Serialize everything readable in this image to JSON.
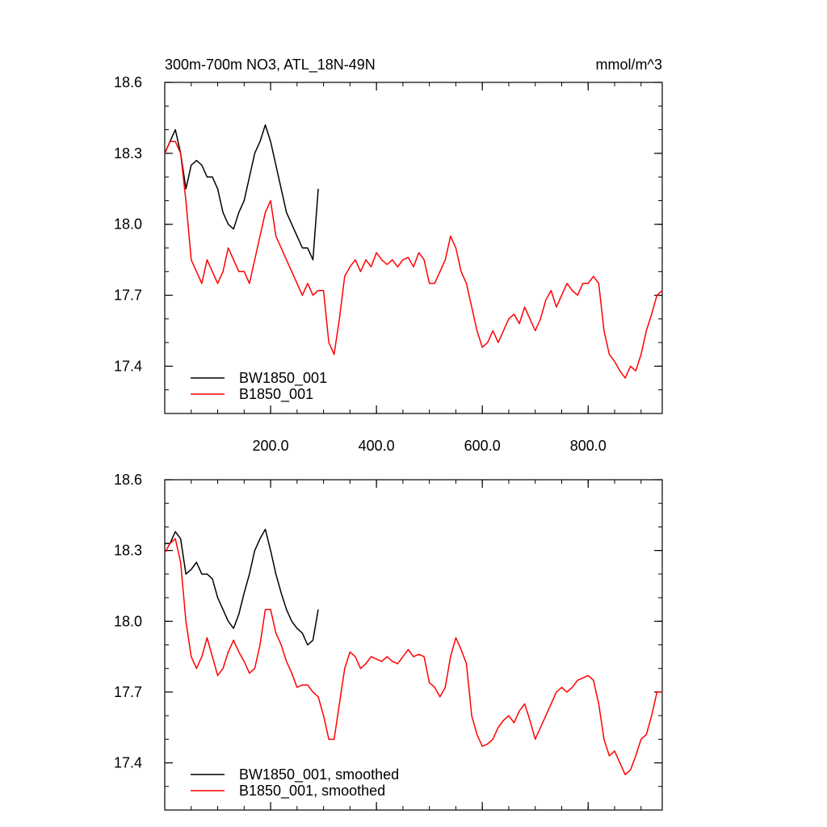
{
  "chart_data": [
    {
      "type": "line",
      "title": "300m-700m NO3, ATL_18N-49N",
      "units": "mmol/m^3",
      "xlim": [
        0,
        940
      ],
      "ylim": [
        17.2,
        18.6
      ],
      "xticks": [
        {
          "value": 200,
          "label": "200.0"
        },
        {
          "value": 400,
          "label": "400.0"
        },
        {
          "value": 600,
          "label": "600.0"
        },
        {
          "value": 800,
          "label": "800.0"
        }
      ],
      "show_xtick_labels": true,
      "yticks": [
        17.4,
        17.7,
        {
          "value": 18,
          "label": "18.0"
        },
        18.3,
        18.6
      ],
      "series": [
        {
          "name": "BW1850_001",
          "color": "#000000",
          "x": [
            0,
            10,
            20,
            30,
            40,
            50,
            60,
            70,
            80,
            90,
            100,
            110,
            120,
            130,
            140,
            150,
            160,
            170,
            180,
            190,
            200,
            210,
            220,
            230,
            240,
            250,
            260,
            270,
            280,
            290
          ],
          "values": [
            18.3,
            18.35,
            18.4,
            18.3,
            18.15,
            18.25,
            18.27,
            18.25,
            18.2,
            18.2,
            18.15,
            18.05,
            18.0,
            17.98,
            18.05,
            18.1,
            18.2,
            18.3,
            18.35,
            18.42,
            18.35,
            18.25,
            18.15,
            18.05,
            18.0,
            17.95,
            17.9,
            17.9,
            17.85,
            18.15
          ]
        },
        {
          "name": "B1850_001",
          "color": "#ff0000",
          "x": [
            0,
            10,
            20,
            30,
            40,
            50,
            60,
            70,
            80,
            90,
            100,
            110,
            120,
            130,
            140,
            150,
            160,
            170,
            180,
            190,
            200,
            210,
            220,
            230,
            240,
            250,
            260,
            270,
            280,
            290,
            300,
            310,
            320,
            330,
            340,
            350,
            360,
            370,
            380,
            390,
            400,
            410,
            420,
            430,
            440,
            450,
            460,
            470,
            480,
            490,
            500,
            510,
            520,
            530,
            540,
            550,
            560,
            570,
            580,
            590,
            600,
            610,
            620,
            630,
            640,
            650,
            660,
            670,
            680,
            690,
            700,
            710,
            720,
            730,
            740,
            750,
            760,
            770,
            780,
            790,
            800,
            810,
            820,
            830,
            840,
            850,
            860,
            870,
            880,
            890,
            900,
            910,
            920,
            930,
            940
          ],
          "values": [
            18.3,
            18.35,
            18.35,
            18.3,
            18.1,
            17.85,
            17.8,
            17.75,
            17.85,
            17.8,
            17.75,
            17.8,
            17.9,
            17.85,
            17.8,
            17.8,
            17.75,
            17.85,
            17.95,
            18.05,
            18.1,
            17.95,
            17.9,
            17.85,
            17.8,
            17.75,
            17.7,
            17.75,
            17.7,
            17.72,
            17.72,
            17.5,
            17.45,
            17.6,
            17.78,
            17.82,
            17.85,
            17.8,
            17.85,
            17.82,
            17.88,
            17.85,
            17.83,
            17.85,
            17.82,
            17.85,
            17.86,
            17.82,
            17.88,
            17.85,
            17.75,
            17.75,
            17.8,
            17.85,
            17.95,
            17.9,
            17.8,
            17.75,
            17.65,
            17.55,
            17.48,
            17.5,
            17.55,
            17.5,
            17.55,
            17.6,
            17.62,
            17.58,
            17.65,
            17.6,
            17.55,
            17.6,
            17.68,
            17.72,
            17.65,
            17.7,
            17.75,
            17.72,
            17.7,
            17.75,
            17.75,
            17.78,
            17.75,
            17.55,
            17.45,
            17.42,
            17.38,
            17.35,
            17.4,
            17.38,
            17.45,
            17.55,
            17.62,
            17.7,
            17.72
          ]
        }
      ]
    },
    {
      "type": "line",
      "xlim": [
        0,
        940
      ],
      "ylim": [
        17.2,
        18.6
      ],
      "xticks": [
        200,
        400,
        600,
        800
      ],
      "show_xtick_labels": false,
      "yticks": [
        17.4,
        17.7,
        {
          "value": 18,
          "label": "18.0"
        },
        18.3,
        18.6
      ],
      "series": [
        {
          "name": "BW1850_001, smoothed",
          "color": "#000000",
          "x": [
            0,
            10,
            20,
            30,
            40,
            50,
            60,
            70,
            80,
            90,
            100,
            110,
            120,
            130,
            140,
            150,
            160,
            170,
            180,
            190,
            200,
            210,
            220,
            230,
            240,
            250,
            260,
            270,
            280,
            290
          ],
          "values": [
            18.33,
            18.33,
            18.38,
            18.35,
            18.2,
            18.22,
            18.25,
            18.2,
            18.2,
            18.18,
            18.1,
            18.05,
            18.0,
            17.97,
            18.03,
            18.12,
            18.2,
            18.3,
            18.35,
            18.39,
            18.3,
            18.2,
            18.12,
            18.05,
            18.0,
            17.97,
            17.95,
            17.9,
            17.92,
            18.05
          ]
        },
        {
          "name": "B1850_001, smoothed",
          "color": "#ff0000",
          "x": [
            0,
            10,
            20,
            30,
            40,
            50,
            60,
            70,
            80,
            90,
            100,
            110,
            120,
            130,
            140,
            150,
            160,
            170,
            180,
            190,
            200,
            210,
            220,
            230,
            240,
            250,
            260,
            270,
            280,
            290,
            300,
            310,
            320,
            330,
            340,
            350,
            360,
            370,
            380,
            390,
            400,
            410,
            420,
            430,
            440,
            450,
            460,
            470,
            480,
            490,
            500,
            510,
            520,
            530,
            540,
            550,
            560,
            570,
            580,
            590,
            600,
            610,
            620,
            630,
            640,
            650,
            660,
            670,
            680,
            690,
            700,
            710,
            720,
            730,
            740,
            750,
            760,
            770,
            780,
            790,
            800,
            810,
            820,
            830,
            840,
            850,
            860,
            870,
            880,
            890,
            900,
            910,
            920,
            930,
            940
          ],
          "values": [
            18.29,
            18.33,
            18.35,
            18.25,
            18.0,
            17.85,
            17.8,
            17.85,
            17.93,
            17.85,
            17.77,
            17.8,
            17.87,
            17.92,
            17.87,
            17.83,
            17.78,
            17.8,
            17.9,
            18.05,
            18.05,
            17.95,
            17.9,
            17.83,
            17.78,
            17.72,
            17.73,
            17.73,
            17.7,
            17.68,
            17.6,
            17.5,
            17.5,
            17.65,
            17.8,
            17.87,
            17.85,
            17.8,
            17.82,
            17.85,
            17.84,
            17.83,
            17.85,
            17.83,
            17.82,
            17.85,
            17.88,
            17.85,
            17.86,
            17.85,
            17.74,
            17.72,
            17.68,
            17.72,
            17.85,
            17.93,
            17.88,
            17.82,
            17.6,
            17.52,
            17.47,
            17.48,
            17.5,
            17.55,
            17.58,
            17.6,
            17.57,
            17.62,
            17.65,
            17.58,
            17.5,
            17.55,
            17.6,
            17.65,
            17.7,
            17.72,
            17.7,
            17.72,
            17.75,
            17.76,
            17.77,
            17.75,
            17.65,
            17.5,
            17.43,
            17.45,
            17.4,
            17.35,
            17.37,
            17.43,
            17.5,
            17.52,
            17.6,
            17.7,
            17.7
          ]
        }
      ]
    }
  ]
}
